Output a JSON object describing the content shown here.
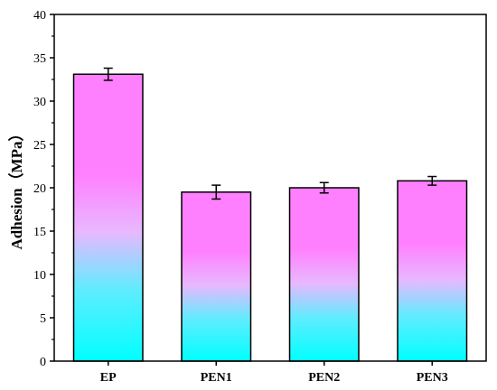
{
  "chart_data": {
    "type": "bar",
    "title": "",
    "xlabel": "",
    "ylabel": "Adhesion（MPa）",
    "categories": [
      "EP",
      "PEN1",
      "PEN2",
      "PEN3"
    ],
    "values": [
      33.1,
      19.5,
      20.0,
      20.8
    ],
    "errors": [
      0.7,
      0.8,
      0.6,
      0.5
    ],
    "ylim": [
      0,
      40
    ],
    "yticks": [
      0,
      5,
      10,
      15,
      20,
      25,
      30,
      35,
      40
    ],
    "grid": false,
    "legend": "none",
    "colors": {
      "bar_top": "#ff80ff",
      "bar_mid": "#e8b8ff",
      "bar_bottom": "#00ffff",
      "outline": "#000000"
    }
  }
}
